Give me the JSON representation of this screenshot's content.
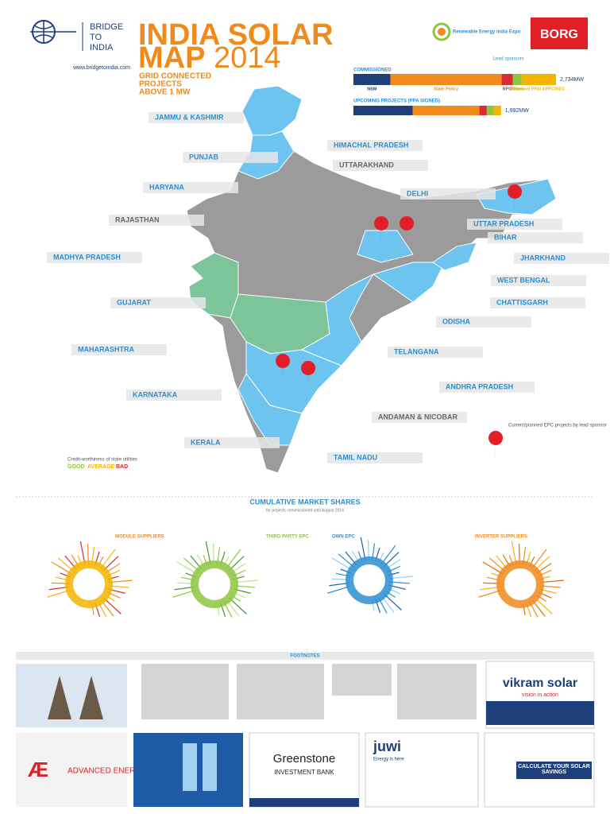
{
  "header": {
    "logo_lines": [
      "BRIDGE",
      "TO",
      "INDIA"
    ],
    "url": "www.bridgetoindia.com",
    "title_line1": "INDIA SOLAR",
    "title_map": "MAP",
    "title_year": "2014",
    "subtitle_lines": [
      "GRID CONNECTED",
      "PROJECTS",
      "ABOVE 1 MW"
    ],
    "expo": "Renewable Energy India Expo",
    "sponsor": "BORG",
    "sponsor_note": "Lead sponsors"
  },
  "capacity": {
    "segment_names": [
      "NSM",
      "State Policy",
      "RPO",
      "Others",
      "Bilateral PPA/ APPC/REC"
    ],
    "colors": [
      "#1d3f7a",
      "#f08a1c",
      "#d62e2e",
      "#8dc63f",
      "#f5b400"
    ],
    "commissioned": {
      "label": "COMMISSIONED",
      "values": [
        500,
        1500,
        150,
        120,
        464
      ],
      "total": "2,734MW"
    },
    "upcoming": {
      "label": "UPCOMING PROJECTS (PPA SIGNED)",
      "values": [
        800,
        900,
        100,
        92,
        100
      ],
      "total": "1,992MW"
    }
  },
  "states": [
    "JAMMU & KASHMIR",
    "HIMACHAL PRADESH",
    "PUNJAB",
    "UTTARAKHAND",
    "HARYANA",
    "DELHI",
    "RAJASTHAN",
    "UTTAR PRADESH",
    "BIHAR",
    "MADHYA PRADESH",
    "JHARKHAND",
    "WEST BENGAL",
    "GUJARAT",
    "CHATTISGARH",
    "ODISHA",
    "MAHARASHTRA",
    "TELANGANA",
    "ANDHRA PRADESH",
    "KARNATAKA",
    "ANDAMAN & NICOBAR",
    "KERALA",
    "TAMIL NADU"
  ],
  "legend": {
    "title": "Credit-worthiness of state utilities",
    "ratings": [
      "GOOD",
      "AVERAGE",
      "BAD"
    ],
    "epc_title": "Current/planned EPC projects by lead sponsor"
  },
  "market": {
    "title": "CUMULATIVE MARKET SHARES",
    "subtitle": "for projects commissioned until August 2014",
    "charts": [
      "MODULE SUPPLIERS",
      "THIRD PARTY EPC",
      "OWN EPC",
      "INVERTER SUPPLIERS"
    ]
  },
  "footnotes": "FOOTNOTES",
  "ads": {
    "vikram": "vikram solar",
    "vikram_tag": "vision in action",
    "ae": "ADVANCED ENERGY",
    "greenstone": "Greenstone",
    "greenstone_sub": "INVESTMENT BANK",
    "juwi": "juwi",
    "juwi_tag": "Energy is here",
    "calc": "CALCULATE YOUR SOLAR SAVINGS"
  }
}
